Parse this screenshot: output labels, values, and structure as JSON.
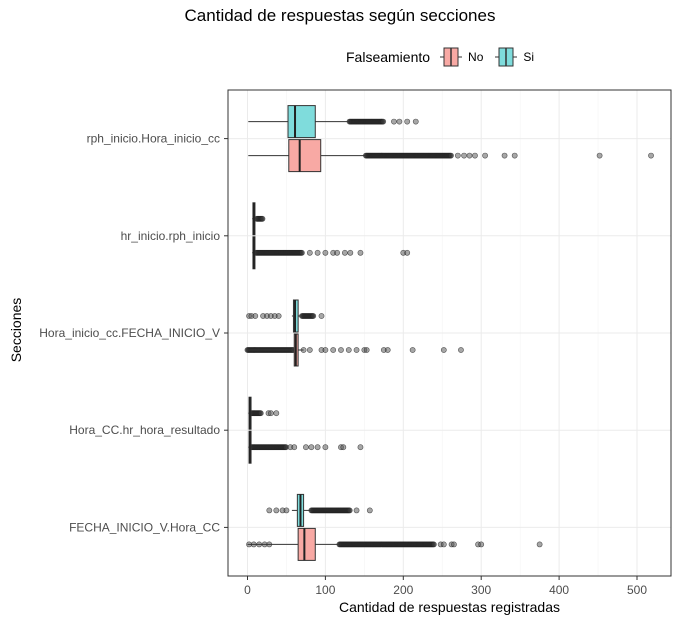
{
  "chart_data": {
    "type": "boxplot",
    "title": "Cantidad de respuestas según secciones",
    "xlabel": "Cantidad de respuestas registradas",
    "ylabel": "Secciones",
    "xlim": [
      -20,
      530
    ],
    "xticks": [
      0,
      100,
      200,
      300,
      400,
      500
    ],
    "legend": {
      "title": "Falseamiento",
      "position": "top",
      "entries": [
        {
          "name": "No",
          "fill": "#F8A9A4"
        },
        {
          "name": "Si",
          "fill": "#7FDCDC"
        }
      ]
    },
    "grid": true,
    "categories": [
      "rph_inicio.Hora_inicio_cc",
      "hr_inicio.rph_inicio",
      "Hora_inicio_cc.FECHA_INICIO_V",
      "Hora_CC.hr_hora_resultado",
      "FECHA_INICIO_V.Hora_CC"
    ],
    "series": [
      {
        "name": "No",
        "boxes": [
          {
            "whisker_low": 1,
            "q1": 53,
            "median": 67,
            "q3": 94,
            "whisker_high": 152,
            "outlier_range": [
              152,
              262
            ],
            "outliers": [
              270,
              278,
              285,
              292,
              305,
              330,
              343,
              452,
              518
            ]
          },
          {
            "whisker_low": 6,
            "q1": 7,
            "median": 8,
            "q3": 9,
            "whisker_high": 11,
            "outlier_range": [
              11,
              70
            ],
            "outliers": [
              80,
              90,
              100,
              110,
              115,
              125,
              132,
              145,
              200,
              205
            ]
          },
          {
            "whisker_low": 0,
            "q1": 60,
            "median": 62,
            "q3": 65,
            "whisker_high": 72,
            "outlier_range": [
              0,
              60
            ],
            "outliers": [
              72,
              80,
              95,
              100,
              110,
              120,
              130,
              140,
              150,
              153,
              175,
              180,
              212,
              252,
              274
            ]
          },
          {
            "whisker_low": 1,
            "q1": 2,
            "median": 3,
            "q3": 4,
            "whisker_high": 5,
            "outlier_range": [
              5,
              50
            ],
            "outliers": [
              55,
              60,
              75,
              82,
              90,
              100,
              120,
              123,
              145
            ]
          },
          {
            "whisker_low": 0,
            "q1": 65,
            "median": 73,
            "q3": 87,
            "whisker_high": 118,
            "outlier_range": [
              118,
              240
            ],
            "outliers": [
              248,
              252,
              262,
              265,
              296,
              300,
              375,
              2,
              8,
              15,
              22,
              28
            ]
          }
        ]
      },
      {
        "name": "Si",
        "boxes": [
          {
            "whisker_low": 1,
            "q1": 52,
            "median": 61,
            "q3": 87,
            "whisker_high": 131,
            "outlier_range": [
              131,
              175
            ],
            "outliers": [
              188,
              195,
              205,
              216
            ]
          },
          {
            "whisker_low": 6,
            "q1": 7,
            "median": 8,
            "q3": 9,
            "whisker_high": 12,
            "outlier_range": [
              12,
              20
            ],
            "outliers": []
          },
          {
            "whisker_low": 57,
            "q1": 59,
            "median": 61,
            "q3": 65,
            "whisker_high": 70,
            "outlier_range": [
              70,
              85
            ],
            "outliers": [
              2,
              5,
              10,
              20,
              25,
              30,
              35,
              40,
              95
            ]
          },
          {
            "whisker_low": 1,
            "q1": 2,
            "median": 3,
            "q3": 4,
            "whisker_high": 5,
            "outlier_range": [
              5,
              18
            ],
            "outliers": [
              27,
              30,
              37
            ]
          },
          {
            "whisker_low": 57,
            "q1": 64,
            "median": 68,
            "q3": 72,
            "whisker_high": 82,
            "outlier_range": [
              82,
              132
            ],
            "outliers": [
              28,
              37,
              45,
              50,
              140,
              157
            ]
          }
        ]
      }
    ]
  }
}
